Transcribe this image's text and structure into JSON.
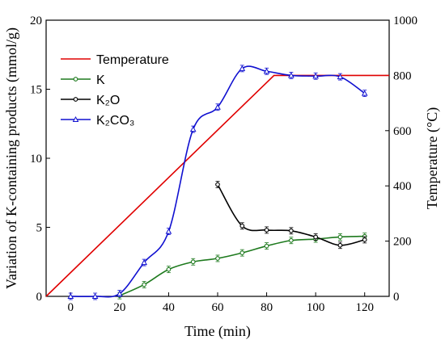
{
  "chart_data": {
    "type": "line",
    "xlabel": "Time (min)",
    "ylabel_left": "Variation of K-containing products (mmol/g)",
    "ylabel_right": "Temperature (°C)",
    "xlim": [
      -10,
      130
    ],
    "ylim_left": [
      0,
      20
    ],
    "ylim_right": [
      0,
      1000
    ],
    "x_ticks": [
      0,
      20,
      40,
      60,
      80,
      100,
      120
    ],
    "y_ticks_left": [
      0,
      5,
      10,
      15,
      20
    ],
    "y_ticks_right": [
      0,
      200,
      400,
      600,
      800,
      1000
    ],
    "grid": false,
    "legend": "top-left",
    "series": [
      {
        "name": "Temperature",
        "axis": "right",
        "color": "#e00000",
        "marker": "none",
        "x": [
          -10,
          83,
          130
        ],
        "y": [
          0,
          800,
          800
        ]
      },
      {
        "name": "K",
        "axis": "left",
        "color": "#1e7a1e",
        "marker": "circle",
        "x": [
          20,
          30,
          40,
          50,
          60,
          70,
          80,
          90,
          100,
          110,
          120
        ],
        "y": [
          0.05,
          0.85,
          1.95,
          2.5,
          2.75,
          3.15,
          3.65,
          4.05,
          4.15,
          4.3,
          4.35
        ]
      },
      {
        "name": "K₂O",
        "axis": "left",
        "color": "#000000",
        "marker": "circle",
        "x": [
          60,
          70,
          80,
          90,
          100,
          110,
          120
        ],
        "y": [
          8.1,
          5.1,
          4.8,
          4.75,
          4.3,
          3.7,
          4.1
        ]
      },
      {
        "name": "K₂CO₃",
        "axis": "left",
        "color": "#1010d0",
        "marker": "triangle",
        "x": [
          0,
          10,
          20,
          30,
          40,
          50,
          60,
          70,
          80,
          90,
          100,
          110,
          120
        ],
        "y": [
          0.0,
          0.0,
          0.2,
          2.45,
          4.7,
          12.1,
          13.7,
          16.5,
          16.3,
          16.0,
          15.95,
          15.9,
          14.7
        ]
      }
    ]
  }
}
